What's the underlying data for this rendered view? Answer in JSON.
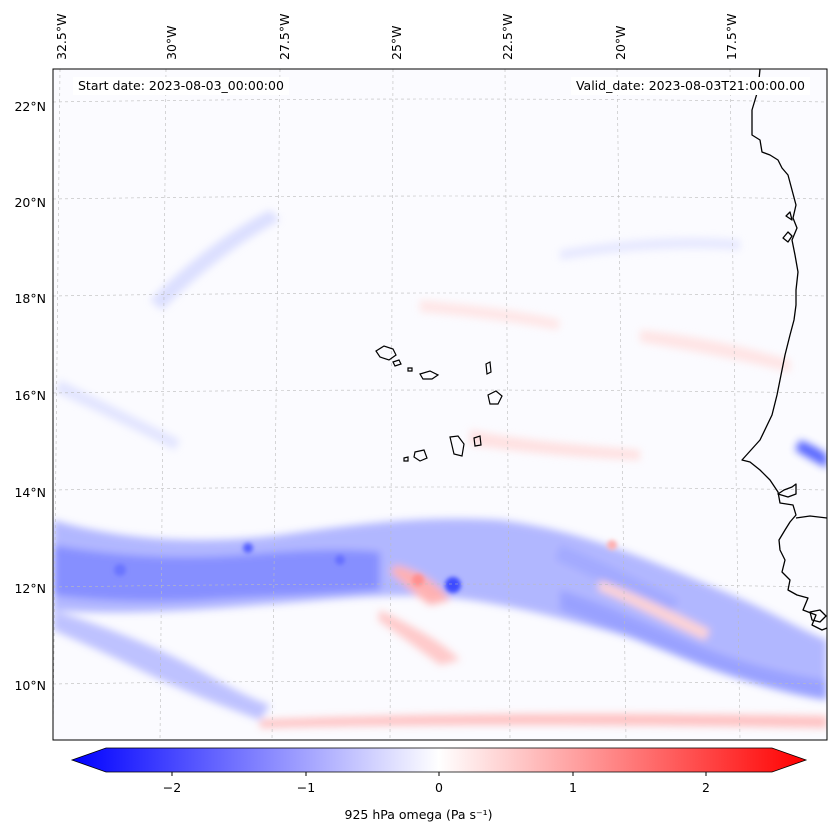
{
  "header": {
    "start_date": "Start date: 2023-08-03_00:00:00",
    "valid_date": "Valid_date: 2023-08-03T21:00:00.00"
  },
  "map": {
    "lon_labels": [
      "32.5°W",
      "30°W",
      "27.5°W",
      "25°W",
      "22.5°W",
      "20°W",
      "17.5°W"
    ],
    "lat_labels": [
      "22°N",
      "20°N",
      "18°N",
      "16°N",
      "14°N",
      "12°N",
      "10°N"
    ],
    "field": "925 hPa omega",
    "negative_color": "#0000ff",
    "positive_color": "#ff0000",
    "coastline_color": "#000000"
  },
  "colorbar": {
    "label": "925 hPa omega (Pa s⁻¹)",
    "ticks": [
      "−2",
      "−1",
      "0",
      "1",
      "2"
    ],
    "tick_values": [
      -2,
      -1,
      0,
      1,
      2
    ],
    "range": [
      -2.5,
      2.5
    ]
  }
}
